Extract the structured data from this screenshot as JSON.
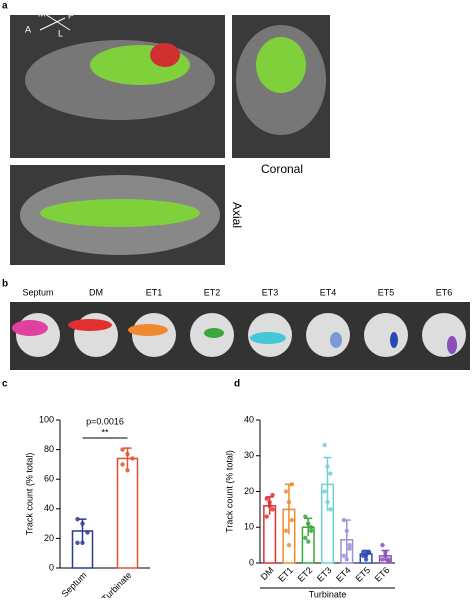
{
  "panels": {
    "a": {
      "label": "a",
      "orient": [
        "M",
        "P",
        "A",
        "L"
      ],
      "coronal": "Coronal",
      "axial": "Axial"
    },
    "b": {
      "label": "b",
      "names": [
        "Septum",
        "DM",
        "ET1",
        "ET2",
        "ET3",
        "ET4",
        "ET5",
        "ET6"
      ]
    },
    "c": {
      "label": "c"
    },
    "d": {
      "label": "d"
    }
  },
  "chart_data": [
    {
      "type": "bar",
      "categories": [
        "Septum",
        "Turbinate"
      ],
      "values": [
        25,
        74
      ],
      "errors": [
        8,
        7
      ],
      "colors": [
        "#2b3a8f",
        "#e0522b"
      ],
      "points": [
        [
          33,
          30,
          24,
          17,
          17
        ],
        [
          80,
          77,
          74,
          70,
          66
        ]
      ],
      "ylim": [
        0,
        100
      ],
      "yticks": [
        0,
        20,
        40,
        60,
        80,
        100
      ],
      "ylabel": "Track count (% total)",
      "annotations": [
        "p=0.0016",
        "**"
      ]
    },
    {
      "type": "bar",
      "categories": [
        "DM",
        "ET1",
        "ET2",
        "ET3",
        "ET4",
        "ET5",
        "ET6"
      ],
      "values": [
        16,
        15,
        10,
        22,
        6.5,
        2.5,
        2
      ],
      "errors": [
        2.5,
        7,
        2.5,
        7.5,
        5.5,
        1,
        1.5
      ],
      "colors": [
        "#e03030",
        "#f08a30",
        "#3aa83a",
        "#6fd0d8",
        "#9a94d8",
        "#2b48b0",
        "#8a4fb8"
      ],
      "points": [
        [
          18,
          16,
          15,
          13,
          17,
          19
        ],
        [
          20,
          17,
          12,
          9,
          5,
          22
        ],
        [
          13,
          11,
          9,
          7,
          6,
          10
        ],
        [
          33,
          27,
          25,
          20,
          17,
          15
        ],
        [
          12,
          9,
          5,
          2,
          1,
          4
        ],
        [
          3,
          2,
          3,
          2,
          1,
          3
        ],
        [
          5,
          3,
          1,
          1,
          2,
          0.5
        ]
      ],
      "ylim": [
        0,
        40
      ],
      "yticks": [
        0,
        10,
        20,
        30,
        40
      ],
      "ylabel": "Track count (% total)",
      "xlabel": "Turbinate"
    }
  ]
}
